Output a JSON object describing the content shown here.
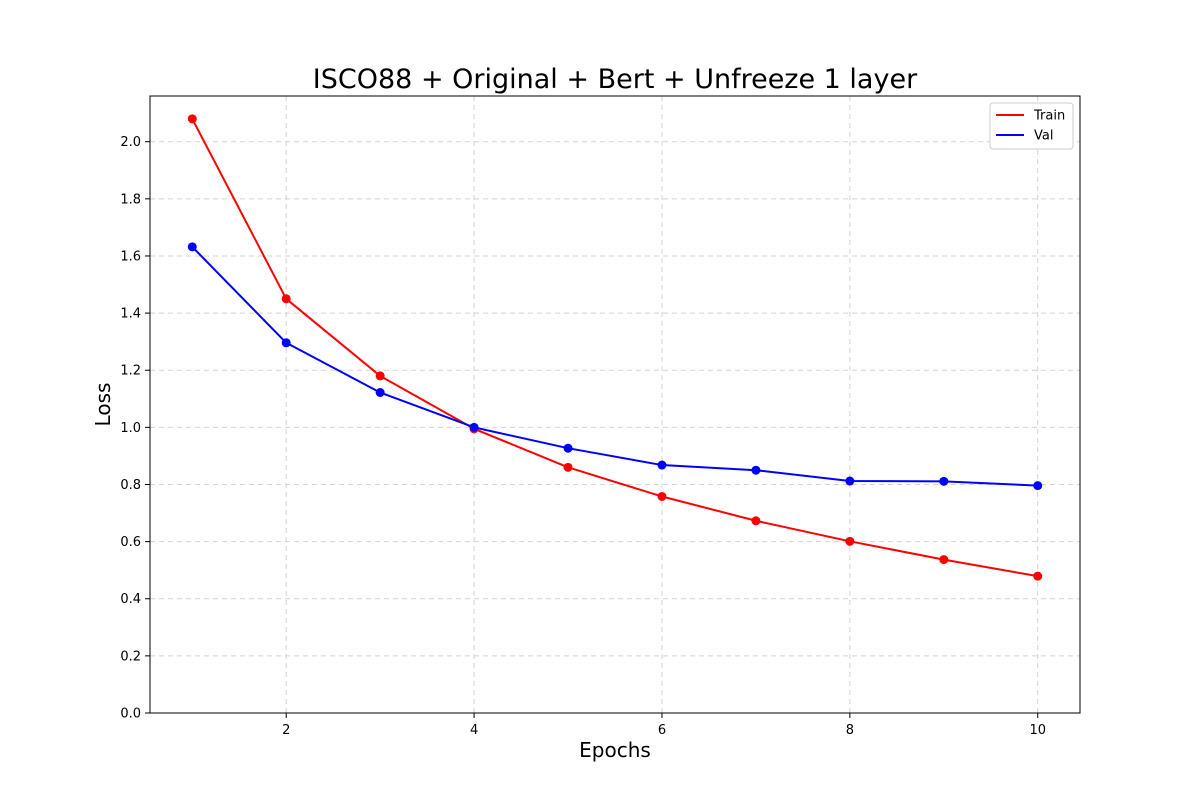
{
  "chart_data": {
    "type": "line",
    "title": "ISCO88 + Original + Bert + Unfreeze 1 layer",
    "xlabel": "Epochs",
    "ylabel": "Loss",
    "x": [
      1,
      2,
      3,
      4,
      5,
      6,
      7,
      8,
      9,
      10
    ],
    "xlim": [
      0.55,
      10.45
    ],
    "ylim": [
      0.0,
      2.16
    ],
    "xticks": [
      2,
      4,
      6,
      8,
      10
    ],
    "xtick_labels": [
      "2",
      "4",
      "6",
      "8",
      "10"
    ],
    "yticks": [
      0.0,
      0.2,
      0.4,
      0.6,
      0.8,
      1.0,
      1.2,
      1.4,
      1.6,
      1.8,
      2.0
    ],
    "ytick_labels": [
      "0.0",
      "0.2",
      "0.4",
      "0.6",
      "0.8",
      "1.0",
      "1.2",
      "1.4",
      "1.6",
      "1.8",
      "2.0"
    ],
    "grid": true,
    "legend_position": "top-right",
    "series": [
      {
        "name": "Train",
        "color": "#ff0000",
        "values": [
          2.08,
          1.45,
          1.18,
          0.995,
          0.86,
          0.758,
          0.673,
          0.601,
          0.537,
          0.479
        ]
      },
      {
        "name": "Val",
        "color": "#0000ff",
        "values": [
          1.632,
          1.296,
          1.122,
          1.0,
          0.927,
          0.868,
          0.85,
          0.812,
          0.811,
          0.796
        ]
      }
    ]
  }
}
